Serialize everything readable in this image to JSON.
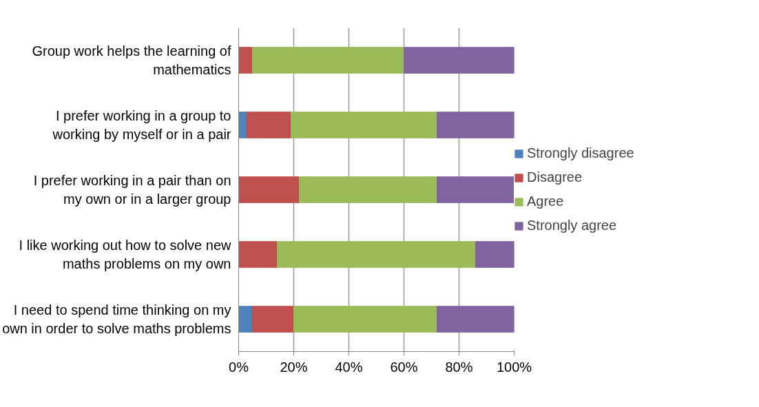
{
  "chart_data": {
    "type": "bar",
    "orientation": "horizontal",
    "stacked": true,
    "categories": [
      "Group work helps the learning of mathematics",
      "I prefer working in a group to working by myself or in a pair",
      "I prefer working in a pair than on my own or in a larger group",
      "I like working out how to solve new maths problems on my own",
      "I need to spend time thinking on my own in order to solve maths problems"
    ],
    "series": [
      {
        "name": "Strongly disagree",
        "color": "#4f81bd",
        "values": [
          0,
          3,
          0,
          0,
          5
        ]
      },
      {
        "name": "Disagree",
        "color": "#c0504d",
        "values": [
          5,
          16,
          22,
          14,
          15
        ]
      },
      {
        "name": "Agree",
        "color": "#9bbb59",
        "values": [
          55,
          53,
          50,
          72,
          52
        ]
      },
      {
        "name": "Strongly agree",
        "color": "#8064a2",
        "values": [
          40,
          28,
          28,
          14,
          28
        ]
      }
    ],
    "xlim": [
      0,
      100
    ],
    "xticks": [
      {
        "value": 0,
        "label": "0%"
      },
      {
        "value": 20,
        "label": "20%"
      },
      {
        "value": 40,
        "label": "40%"
      },
      {
        "value": 60,
        "label": "60%"
      },
      {
        "value": 80,
        "label": "80%"
      },
      {
        "value": 100,
        "label": "100%"
      }
    ],
    "grid": "x",
    "legend": "right"
  }
}
